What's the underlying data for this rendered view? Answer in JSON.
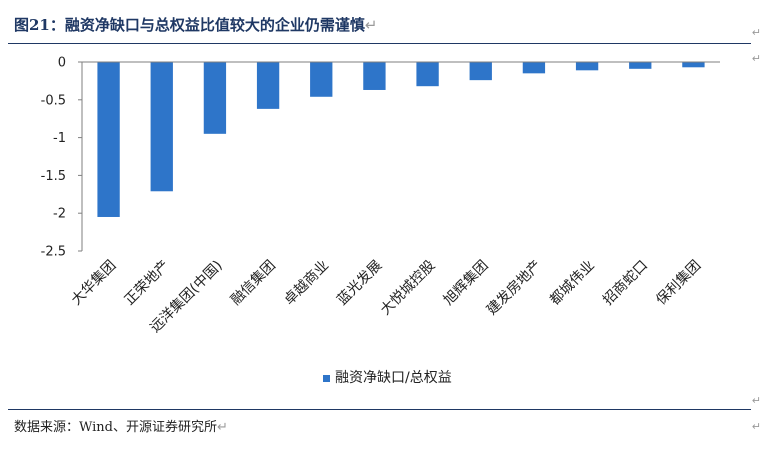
{
  "figure": {
    "title": "图21：融资净缺口与总权益比值较大的企业仍需谨慎",
    "source": "数据来源：Wind、开源证券研究所",
    "paragraph_mark": "↵"
  },
  "colors": {
    "bar": "#2e75c9",
    "title": "#1f3864",
    "axis": "#7f7f7f",
    "text": "#222222"
  },
  "chart_data": {
    "type": "bar",
    "categories": [
      "大华集团",
      "正荣地产",
      "远洋集团(中国)",
      "融信集团",
      "卓越商业",
      "蓝光发展",
      "大悦城控股",
      "旭辉集团",
      "建发房地产",
      "都城伟业",
      "招商蛇口",
      "保利集团"
    ],
    "series": [
      {
        "name": "融资净缺口/总权益",
        "values": [
          -2.05,
          -1.71,
          -0.95,
          -0.62,
          -0.46,
          -0.37,
          -0.32,
          -0.24,
          -0.15,
          -0.11,
          -0.09,
          -0.07
        ]
      }
    ],
    "ylim": [
      -2.5,
      0
    ],
    "yticks": [
      0,
      -0.5,
      -1,
      -1.5,
      -2,
      -2.5
    ],
    "ytick_labels": [
      "0",
      "-0.5",
      "-1",
      "-1.5",
      "-2",
      "-2.5"
    ],
    "legend_position": "bottom",
    "grid": false
  }
}
